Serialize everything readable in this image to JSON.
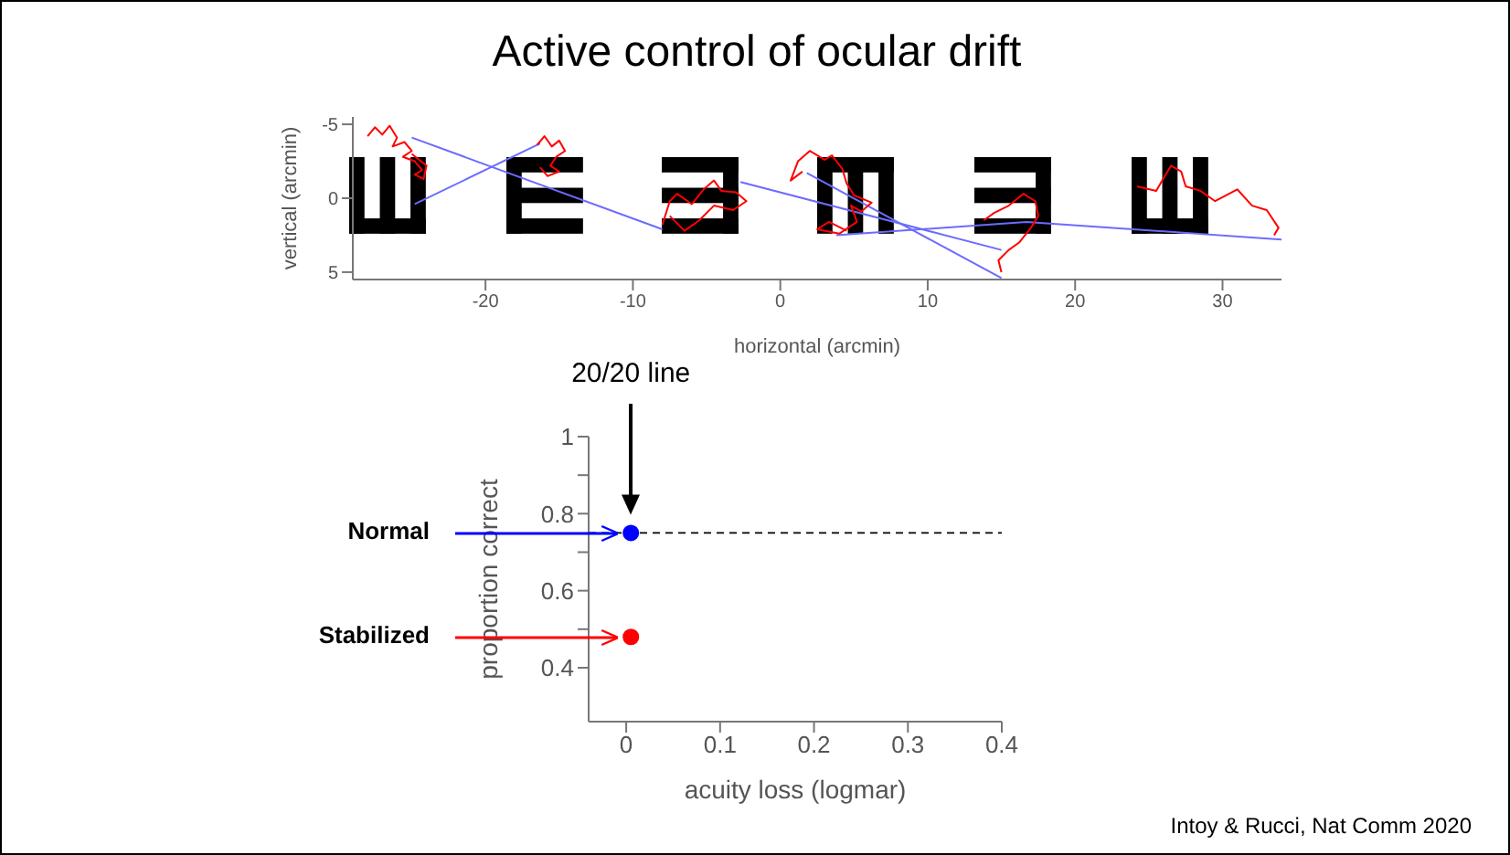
{
  "chart_data": [
    {
      "type": "line",
      "title": "Active control of ocular drift",
      "xlabel": "horizontal (arcmin)",
      "ylabel": "vertical (arcmin)",
      "xlim": [
        -29,
        34
      ],
      "xticks": [
        -20,
        -10,
        0,
        10,
        20,
        30
      ],
      "ylim": [
        5.5,
        -5.5
      ],
      "yticks": [
        -5,
        0,
        5
      ],
      "grid": false,
      "legend": false,
      "series": [
        {
          "color": "#6b6bff",
          "x": [
            -25,
            -8
          ],
          "values": [
            -4.1,
            2.1
          ]
        },
        {
          "color": "#6b6bff",
          "x": [
            -24.8,
            -16.3
          ],
          "values": [
            0.4,
            -3.7
          ]
        },
        {
          "color": "#6b6bff",
          "x": [
            -2.7,
            15
          ],
          "values": [
            -1.1,
            3.5
          ]
        },
        {
          "color": "#6b6bff",
          "x": [
            1.8,
            15
          ],
          "values": [
            -1.7,
            5.4
          ]
        },
        {
          "color": "#6b6bff",
          "x": [
            3.8,
            16.7,
            34
          ],
          "values": [
            2.5,
            1.6,
            2.8
          ]
        },
        {
          "color": "#ff0000",
          "x": [
            -28,
            -27.5,
            -27,
            -26.5,
            -26,
            -26.3,
            -25.5,
            -25,
            -25.6,
            -24.8,
            -24.3,
            -24.8,
            -24.2,
            -24,
            -25
          ],
          "values": [
            -4.2,
            -4.8,
            -4.3,
            -4.9,
            -4.1,
            -3.5,
            -3.8,
            -3.2,
            -2.8,
            -2.5,
            -1.9,
            -1.6,
            -1.3,
            -2.2,
            -3
          ]
        },
        {
          "color": "#ff0000",
          "x": [
            -16.5,
            -16,
            -15.5,
            -15,
            -14.6,
            -15.2,
            -15.6,
            -15,
            -15.8,
            -16.3
          ],
          "values": [
            -3.6,
            -4.2,
            -3.5,
            -3.9,
            -3.2,
            -2.8,
            -2.2,
            -1.8,
            -1.5,
            -2.1
          ]
        },
        {
          "color": "#ff0000",
          "x": [
            -8,
            -7.5,
            -7,
            -6,
            -5.2,
            -4.5,
            -4,
            -3,
            -2.3,
            -3.2,
            -4.5,
            -5.5,
            -6.5,
            -7.5
          ],
          "values": [
            1.8,
            0.2,
            -0.3,
            0.4,
            -0.6,
            -1.2,
            -0.5,
            -0.4,
            0.2,
            0.8,
            0.5,
            1.5,
            2.2,
            1.2
          ]
        },
        {
          "color": "#ff0000",
          "x": [
            1.5,
            0.7,
            1.2,
            2,
            3,
            3.5,
            4.2,
            4.5,
            5,
            6.2,
            5.5,
            4.8,
            5.2,
            4,
            2.5,
            3.3,
            4.5
          ],
          "values": [
            -1.8,
            -1.2,
            -2.5,
            -3.2,
            -2.6,
            -2.9,
            -2,
            -1,
            -0.2,
            0.3,
            0.9,
            0.5,
            1.6,
            2.4,
            2.1,
            1.6,
            2.2
          ]
        },
        {
          "color": "#ff0000",
          "x": [
            13.8,
            14.5,
            15.5,
            16.5,
            17.3,
            17.5,
            17,
            16.2,
            15.5,
            14.8,
            15
          ],
          "values": [
            1.5,
            1,
            0.5,
            -0.3,
            0.2,
            1.2,
            2,
            3,
            3.5,
            4.2,
            5
          ]
        },
        {
          "color": "#ff0000",
          "x": [
            24.2,
            25.5,
            26.5,
            27.2,
            27.5,
            28.5,
            29.5,
            31,
            32,
            33,
            33.8,
            33.5
          ],
          "values": [
            -0.8,
            -0.5,
            -2.2,
            -1.8,
            -0.8,
            -0.5,
            0.2,
            -0.6,
            0.5,
            0.8,
            2,
            2.5
          ]
        }
      ]
    },
    {
      "type": "scatter",
      "xlabel": "acuity loss (logmar)",
      "ylabel": "proportion correct",
      "xlim": [
        -0.04,
        0.4
      ],
      "xticks": [
        0,
        0.1,
        0.2,
        0.3,
        0.4
      ],
      "ylim": [
        0.26,
        1
      ],
      "yticks": [
        0.4,
        {
          "value": 0.5,
          "label": null
        },
        0.6,
        {
          "value": 0.7,
          "label": null
        },
        0.8,
        {
          "value": 0.9,
          "label": null
        },
        1
      ],
      "grid": false,
      "legend": false,
      "marker": "circle",
      "series": [
        {
          "name": "Normal",
          "color": "#0000ff",
          "x": [
            0.005
          ],
          "values": [
            0.75
          ]
        },
        {
          "name": "Stabilized",
          "color": "#ff0000",
          "x": [
            0.005
          ],
          "values": [
            0.48
          ]
        }
      ],
      "ref_lines": [
        {
          "axis": "y",
          "value": 0.75,
          "color": "#000000",
          "line_style": "dashed"
        }
      ],
      "annotations": [
        "20/20 line",
        "Intoy & Rucci, Nat Comm 2020"
      ]
    }
  ]
}
